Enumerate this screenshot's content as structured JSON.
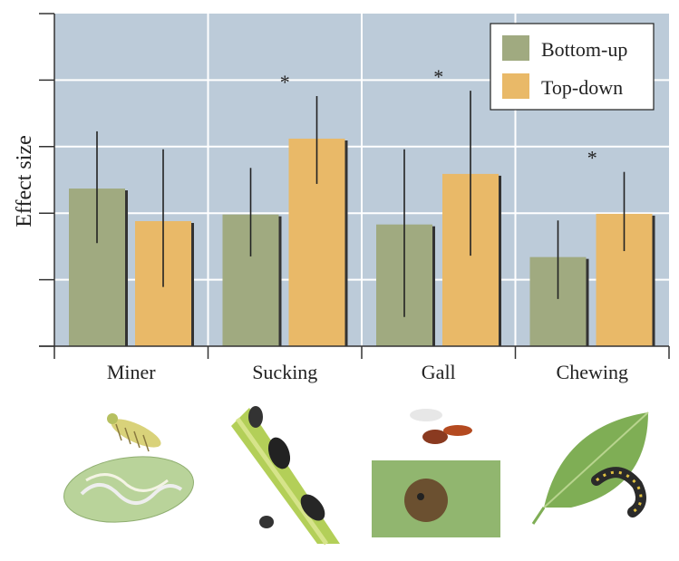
{
  "chart_data": {
    "type": "bar",
    "title": "",
    "xlabel": "",
    "ylabel": "Effect size",
    "ylim": [
      0,
      5
    ],
    "y_tick_labels_shown": false,
    "grid": true,
    "legend_position": "top-right",
    "categories": [
      "Miner",
      "Sucking",
      "Gall",
      "Chewing"
    ],
    "series": [
      {
        "name": "Bottom-up",
        "color": "#a0aa80",
        "values": [
          2.37,
          1.98,
          1.83,
          1.34
        ],
        "error_low": [
          1.55,
          1.35,
          0.44,
          0.71
        ],
        "error_high": [
          3.23,
          2.68,
          2.96,
          1.89
        ]
      },
      {
        "name": "Top-down",
        "color": "#e9b968",
        "values": [
          1.88,
          3.12,
          2.59,
          1.99
        ],
        "error_low": [
          0.89,
          2.44,
          1.36,
          1.43
        ],
        "error_high": [
          2.96,
          3.76,
          3.84,
          2.62
        ]
      }
    ],
    "significance": [
      "",
      "*",
      "*",
      "*"
    ],
    "background_color": "#bccbd9",
    "category_images": [
      "leaf-miner larva and mined leaf",
      "aphids on stem",
      "gall wasp and gall",
      "caterpillar on leaf"
    ]
  }
}
